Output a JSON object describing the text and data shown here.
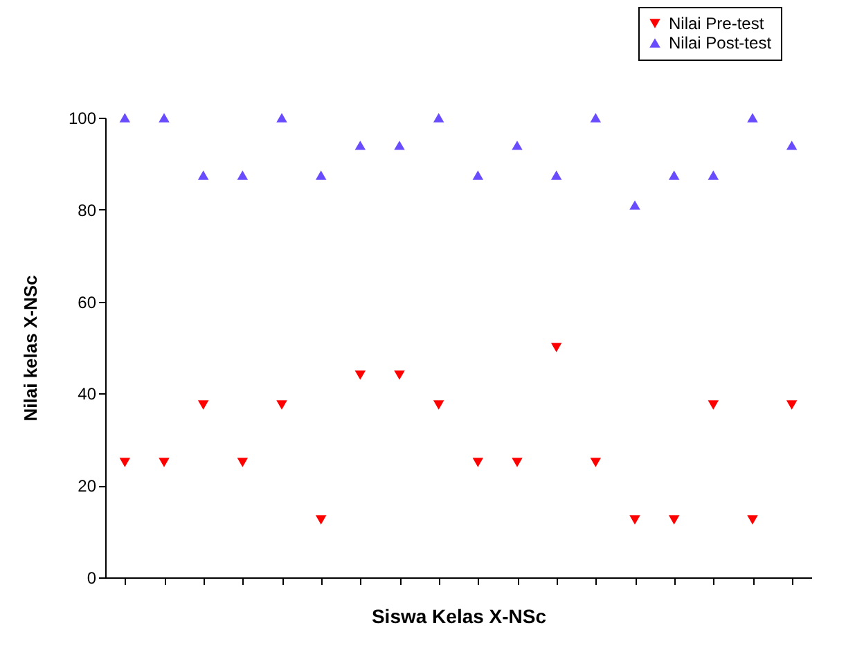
{
  "chart_data": {
    "type": "scatter",
    "xlabel": "Siswa Kelas X-NSc",
    "ylabel": "Nilai kelas X-NSc",
    "categories": [
      null,
      null,
      null,
      null,
      null,
      null,
      null,
      null,
      null,
      null,
      null,
      null,
      null,
      null,
      null,
      null,
      null,
      null
    ],
    "series": [
      {
        "name": "Nilai Pre-test",
        "color": "#ff0000",
        "marker": "triangle-down",
        "values": [
          25,
          25,
          37.5,
          25,
          37.5,
          12.5,
          44,
          44,
          37.5,
          25,
          25,
          50,
          25,
          12.5,
          12.5,
          37.5,
          12.5,
          37.5
        ]
      },
      {
        "name": "Nilai Post-test",
        "color": "#6a4cff",
        "marker": "triangle",
        "values": [
          100,
          100,
          87.5,
          87.5,
          100,
          87.5,
          94,
          94,
          100,
          87.5,
          94,
          87.5,
          100,
          81,
          87.5,
          87.5,
          100,
          94
        ]
      }
    ],
    "ylim": [
      0,
      100
    ],
    "yticks": [
      0,
      20,
      40,
      60,
      80,
      100
    ],
    "tick_labels": "y",
    "grid": false,
    "legend": "top right"
  }
}
